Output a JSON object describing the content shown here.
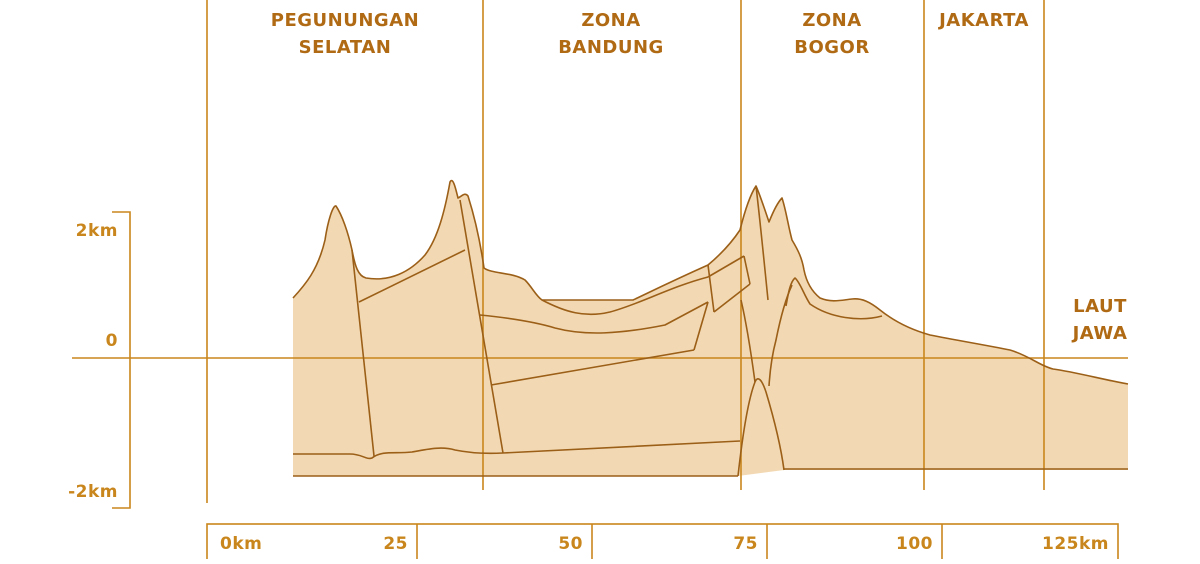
{
  "zones": [
    {
      "id": "pegunungan-selatan",
      "lines": [
        "PEGUNUNGAN",
        "SELATAN"
      ]
    },
    {
      "id": "zona-bandung",
      "lines": [
        "ZONA",
        "BANDUNG"
      ]
    },
    {
      "id": "zona-bogor",
      "lines": [
        "ZONA",
        "BOGOR"
      ]
    },
    {
      "id": "jakarta",
      "lines": [
        "JAKARTA"
      ]
    }
  ],
  "sea_label": [
    "LAUT",
    "JAWA"
  ],
  "vertical_axis": {
    "ticks": [
      "2km",
      "0",
      "-2km"
    ]
  },
  "horizontal_axis": {
    "ticks": [
      "0km",
      "25",
      "50",
      "75",
      "100",
      "125km"
    ]
  },
  "colors": {
    "guide": "#c9861c",
    "fill": "#f3d9b3",
    "outline": "#9b5f18",
    "zone_text": "#b06a14"
  }
}
